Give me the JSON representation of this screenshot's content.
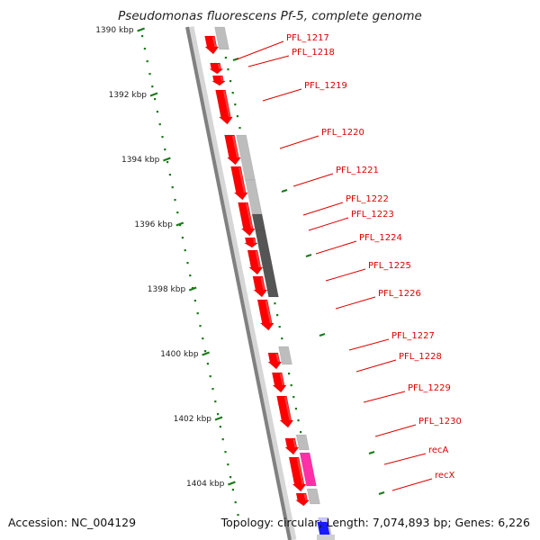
{
  "title": "Pseudomonas fluorescens Pf-5, complete genome",
  "footer": {
    "accession": "Accession: NC_004129",
    "summary": "Topology: circular; Length: 7,074,893 bp; Genes: 6,226"
  },
  "colors": {
    "cds_forward": "#ff0000",
    "gene_gray": "#bdbdbd",
    "gene_dark": "#555555",
    "gene_magenta": "#ff2fa8",
    "backbone": "#808080",
    "tick_green": "#1a7a1a",
    "label_red": "#e00000",
    "blue_feature": "#1a1aff"
  },
  "axis": {
    "ticks": [
      {
        "kbp": 1390,
        "label": "1390 kbp"
      },
      {
        "kbp": 1392,
        "label": "1392 kbp"
      },
      {
        "kbp": 1394,
        "label": "1394 kbp"
      },
      {
        "kbp": 1396,
        "label": "1396 kbp"
      },
      {
        "kbp": 1398,
        "label": "1398 kbp"
      },
      {
        "kbp": 1400,
        "label": "1400 kbp"
      },
      {
        "kbp": 1402,
        "label": "1402 kbp"
      },
      {
        "kbp": 1404,
        "label": "1404 kbp"
      }
    ]
  },
  "genes": [
    {
      "label": "PFL_1217"
    },
    {
      "label": "PFL_1218"
    },
    {
      "label": "PFL_1219"
    },
    {
      "label": "PFL_1220"
    },
    {
      "label": "PFL_1221"
    },
    {
      "label": "PFL_1222"
    },
    {
      "label": "PFL_1223"
    },
    {
      "label": "PFL_1224"
    },
    {
      "label": "PFL_1225"
    },
    {
      "label": "PFL_1226"
    },
    {
      "label": "PFL_1227"
    },
    {
      "label": "PFL_1228"
    },
    {
      "label": "PFL_1229"
    },
    {
      "label": "PFL_1230"
    },
    {
      "label": "recA"
    },
    {
      "label": "recX"
    }
  ]
}
